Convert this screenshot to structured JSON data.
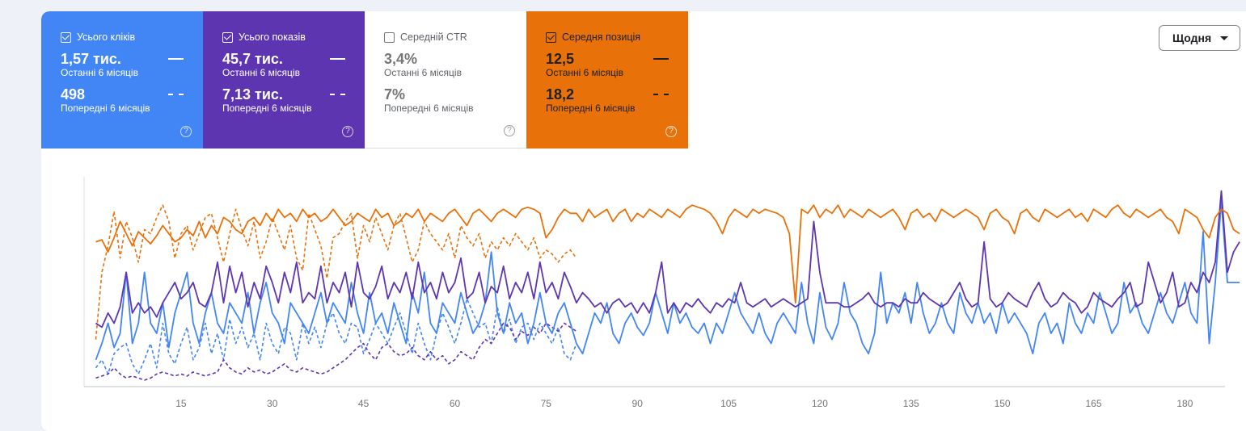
{
  "tiles": {
    "clicks": {
      "label": "Усього кліків",
      "checked": true,
      "current_value": "1,57 тис.",
      "current_period": "Останні 6 місяців",
      "previous_value": "498",
      "previous_period": "Попередні 6 місяців",
      "color": "#4285f4"
    },
    "impressions": {
      "label": "Усього показів",
      "checked": true,
      "current_value": "45,7 тис.",
      "current_period": "Останні 6 місяців",
      "previous_value": "7,13 тис.",
      "previous_period": "Попередні 6 місяців",
      "color": "#5e35b1"
    },
    "ctr": {
      "label": "Середній CTR",
      "checked": false,
      "current_value": "3,4%",
      "current_period": "Останні 6 місяців",
      "previous_value": "7%",
      "previous_period": "Попередні 6 місяців"
    },
    "position": {
      "label": "Середня позиція",
      "checked": true,
      "current_value": "12,5",
      "current_period": "Останні 6 місяців",
      "previous_value": "18,2",
      "previous_period": "Попередні 6 місяців",
      "color": "#e8710a"
    }
  },
  "help_glyph": "?",
  "granularity": {
    "selected": "Щодня"
  },
  "chart_data": {
    "type": "line",
    "x_ticks": [
      "15",
      "30",
      "45",
      "60",
      "75",
      "90",
      "105",
      "120",
      "135",
      "150",
      "165",
      "180"
    ],
    "x_range": [
      0,
      185
    ],
    "series": [
      {
        "name": "Усього кліків",
        "period": "Останні 6 місяців",
        "style": "solid",
        "color": "#4285f4",
        "values": [
          0.12,
          0.2,
          0.3,
          0.18,
          0.25,
          0.55,
          0.2,
          0.3,
          0.55,
          0.3,
          0.25,
          0.4,
          0.18,
          0.35,
          0.45,
          0.55,
          0.3,
          0.2,
          0.35,
          0.45,
          0.3,
          0.25,
          0.4,
          0.35,
          0.3,
          0.45,
          0.25,
          0.4,
          0.5,
          0.35,
          0.3,
          0.2,
          0.4,
          0.35,
          0.3,
          0.25,
          0.35,
          0.45,
          0.3,
          0.4,
          0.35,
          0.3,
          0.5,
          0.35,
          0.25,
          0.45,
          0.3,
          0.35,
          0.25,
          0.4,
          0.3,
          0.2,
          0.45,
          0.35,
          0.55,
          0.3,
          0.25,
          0.4,
          0.35,
          0.3,
          0.45,
          0.35,
          0.25,
          0.3,
          0.4,
          0.65,
          0.35,
          0.25,
          0.4,
          0.3,
          0.35,
          0.2,
          0.3,
          0.45,
          0.3,
          0.25,
          0.35,
          0.4,
          0.3,
          0.2,
          0.15,
          0.25,
          0.35,
          0.3,
          0.4,
          0.25,
          0.2,
          0.3,
          0.35,
          0.28,
          0.24,
          0.3,
          0.45,
          0.35,
          0.25,
          0.4,
          0.3,
          0.35,
          0.28,
          0.25,
          0.3,
          0.2,
          0.3,
          0.25,
          0.35,
          0.45,
          0.35,
          0.3,
          0.25,
          0.35,
          0.25,
          0.2,
          0.3,
          0.35,
          0.3,
          0.25,
          0.5,
          0.3,
          0.2,
          0.45,
          0.28,
          0.22,
          0.3,
          0.5,
          0.35,
          0.3,
          0.2,
          0.15,
          0.25,
          0.55,
          0.3,
          0.4,
          0.35,
          0.45,
          0.3,
          0.5,
          0.35,
          0.25,
          0.3,
          0.4,
          0.3,
          0.25,
          0.45,
          0.35,
          0.3,
          0.4,
          0.3,
          0.35,
          0.25,
          0.4,
          0.3,
          0.35,
          0.3,
          0.25,
          0.15,
          0.3,
          0.35,
          0.25,
          0.3,
          0.2,
          0.4,
          0.3,
          0.25,
          0.35,
          0.3,
          0.45,
          0.35,
          0.25,
          0.3,
          0.5,
          0.35,
          0.4,
          0.3,
          0.25,
          0.35,
          0.45,
          0.35,
          0.3,
          0.4,
          0.5,
          0.35,
          0.3,
          0.75,
          0.2,
          0.5,
          0.9,
          0.5,
          0.5,
          0.5
        ]
      },
      {
        "name": "Усього показів",
        "period": "Останні 6 місяців",
        "style": "solid",
        "color": "#5e35b1",
        "values": [
          0.3,
          0.28,
          0.35,
          0.3,
          0.38,
          0.55,
          0.35,
          0.4,
          0.35,
          0.38,
          0.33,
          0.4,
          0.45,
          0.5,
          0.42,
          0.45,
          0.5,
          0.4,
          0.38,
          0.45,
          0.6,
          0.4,
          0.58,
          0.45,
          0.55,
          0.38,
          0.5,
          0.42,
          0.58,
          0.5,
          0.4,
          0.55,
          0.45,
          0.6,
          0.4,
          0.45,
          0.42,
          0.58,
          0.4,
          0.5,
          0.45,
          0.55,
          0.38,
          0.6,
          0.45,
          0.42,
          0.48,
          0.58,
          0.42,
          0.5,
          0.45,
          0.55,
          0.42,
          0.6,
          0.45,
          0.5,
          0.42,
          0.55,
          0.45,
          0.5,
          0.62,
          0.42,
          0.45,
          0.55,
          0.4,
          0.48,
          0.45,
          0.58,
          0.42,
          0.5,
          0.45,
          0.55,
          0.42,
          0.6,
          0.45,
          0.5,
          0.42,
          0.55,
          0.48,
          0.4,
          0.45,
          0.42,
          0.38,
          0.4,
          0.35,
          0.4,
          0.42,
          0.38,
          0.4,
          0.35,
          0.4,
          0.35,
          0.45,
          0.6,
          0.35,
          0.4,
          0.35,
          0.4,
          0.38,
          0.42,
          0.38,
          0.35,
          0.4,
          0.38,
          0.42,
          0.4,
          0.5,
          0.4,
          0.38,
          0.4,
          0.42,
          0.38,
          0.4,
          0.42,
          0.4,
          0.38,
          0.4,
          0.42,
          0.8,
          0.55,
          0.4,
          0.4,
          0.4,
          0.38,
          0.38,
          0.4,
          0.42,
          0.45,
          0.4,
          0.38,
          0.4,
          0.4,
          0.38,
          0.42,
          0.4,
          0.4,
          0.45,
          0.42,
          0.4,
          0.38,
          0.4,
          0.45,
          0.5,
          0.42,
          0.38,
          0.4,
          0.7,
          0.42,
          0.38,
          0.4,
          0.45,
          0.42,
          0.4,
          0.38,
          0.45,
          0.5,
          0.42,
          0.38,
          0.4,
          0.45,
          0.42,
          0.4,
          0.35,
          0.38,
          0.45,
          0.42,
          0.4,
          0.38,
          0.42,
          0.45,
          0.5,
          0.38,
          0.4,
          0.6,
          0.5,
          0.4,
          0.45,
          0.55,
          0.38,
          0.4,
          0.5,
          0.45,
          0.55,
          0.5,
          0.6,
          0.95,
          0.55,
          0.65,
          0.7
        ]
      },
      {
        "name": "Середня позиція",
        "period": "Останні 6 місяців",
        "style": "solid",
        "color": "#e8710a",
        "values": [
          0.7,
          0.71,
          0.65,
          0.72,
          0.8,
          0.74,
          0.68,
          0.75,
          0.72,
          0.69,
          0.73,
          0.78,
          0.74,
          0.7,
          0.72,
          0.76,
          0.73,
          0.8,
          0.72,
          0.78,
          0.74,
          0.82,
          0.8,
          0.76,
          0.74,
          0.8,
          0.82,
          0.78,
          0.84,
          0.8,
          0.86,
          0.82,
          0.84,
          0.8,
          0.86,
          0.82,
          0.84,
          0.8,
          0.82,
          0.86,
          0.82,
          0.78,
          0.8,
          0.84,
          0.82,
          0.8,
          0.86,
          0.82,
          0.84,
          0.78,
          0.8,
          0.84,
          0.82,
          0.86,
          0.8,
          0.84,
          0.82,
          0.8,
          0.84,
          0.86,
          0.82,
          0.78,
          0.84,
          0.86,
          0.83,
          0.8,
          0.84,
          0.86,
          0.84,
          0.82,
          0.86,
          0.87,
          0.86,
          0.84,
          0.72,
          0.76,
          0.82,
          0.86,
          0.84,
          0.84,
          0.8,
          0.86,
          0.82,
          0.84,
          0.86,
          0.8,
          0.84,
          0.86,
          0.8,
          0.84,
          0.82,
          0.86,
          0.84,
          0.82,
          0.86,
          0.84,
          0.82,
          0.86,
          0.88,
          0.87,
          0.86,
          0.84,
          0.8,
          0.74,
          0.82,
          0.86,
          0.84,
          0.82,
          0.86,
          0.84,
          0.86,
          0.85,
          0.84,
          0.82,
          0.74,
          0.4,
          0.86,
          0.84,
          0.88,
          0.82,
          0.86,
          0.84,
          0.88,
          0.82,
          0.86,
          0.84,
          0.82,
          0.86,
          0.84,
          0.82,
          0.84,
          0.86,
          0.82,
          0.76,
          0.84,
          0.86,
          0.82,
          0.84,
          0.8,
          0.86,
          0.84,
          0.82,
          0.84,
          0.86,
          0.84,
          0.82,
          0.76,
          0.84,
          0.86,
          0.82,
          0.8,
          0.74,
          0.84,
          0.86,
          0.82,
          0.8,
          0.86,
          0.84,
          0.82,
          0.84,
          0.86,
          0.82,
          0.84,
          0.8,
          0.86,
          0.84,
          0.82,
          0.86,
          0.88,
          0.84,
          0.82,
          0.86,
          0.84,
          0.82,
          0.84,
          0.86,
          0.82,
          0.8,
          0.74,
          0.86,
          0.84,
          0.82,
          0.76,
          0.72,
          0.82,
          0.86,
          0.84,
          0.76,
          0.74
        ]
      },
      {
        "name": "Усього кліків",
        "period": "Попередні 6 місяців",
        "style": "dashed",
        "color": "#4285f4",
        "values": [
          0.08,
          0.12,
          0.05,
          0.15,
          0.18,
          0.2,
          0.1,
          0.05,
          0.12,
          0.2,
          0.08,
          0.3,
          0.15,
          0.1,
          0.2,
          0.28,
          0.12,
          0.18,
          0.3,
          0.15,
          0.25,
          0.12,
          0.32,
          0.2,
          0.28,
          0.18,
          0.25,
          0.12,
          0.3,
          0.2,
          0.15,
          0.28,
          0.25,
          0.12,
          0.3,
          0.2,
          0.28,
          0.18,
          0.3,
          0.35,
          0.25,
          0.2,
          0.3,
          0.28,
          0.15,
          0.22,
          0.3,
          0.25,
          0.2,
          0.28,
          0.35,
          0.25,
          0.15,
          0.3,
          0.2,
          0.12,
          0.25,
          0.35,
          0.28,
          0.2,
          0.3,
          0.42,
          0.35,
          0.28,
          0.3,
          0.2,
          0.38,
          0.25,
          0.32,
          0.2,
          0.28,
          0.3,
          0.22,
          0.3,
          0.25,
          0.2,
          0.28,
          0.15,
          0.12,
          0.2
        ]
      },
      {
        "name": "Усього показів",
        "period": "Попередні 6 місяців",
        "style": "dashed",
        "color": "#5e35b1",
        "values": [
          0.03,
          0.04,
          0.05,
          0.08,
          0.05,
          0.03,
          0.04,
          0.03,
          0.02,
          0.03,
          0.05,
          0.06,
          0.05,
          0.04,
          0.05,
          0.04,
          0.06,
          0.05,
          0.04,
          0.05,
          0.06,
          0.12,
          0.08,
          0.06,
          0.05,
          0.08,
          0.06,
          0.07,
          0.05,
          0.06,
          0.08,
          0.1,
          0.07,
          0.06,
          0.08,
          0.07,
          0.06,
          0.05,
          0.06,
          0.08,
          0.1,
          0.12,
          0.15,
          0.18,
          0.2,
          0.15,
          0.12,
          0.18,
          0.2,
          0.16,
          0.14,
          0.15,
          0.18,
          0.14,
          0.12,
          0.16,
          0.12,
          0.14,
          0.1,
          0.12,
          0.16,
          0.14,
          0.12,
          0.18,
          0.22,
          0.2,
          0.25,
          0.3,
          0.28,
          0.22,
          0.26,
          0.24,
          0.28,
          0.25,
          0.3,
          0.28,
          0.26,
          0.3,
          0.28,
          0.26
        ]
      },
      {
        "name": "Середня позиція",
        "period": "Попередні 6 місяців",
        "style": "dashed",
        "color": "#e8710a",
        "values": [
          0.22,
          0.55,
          0.68,
          0.85,
          0.62,
          0.8,
          0.72,
          0.6,
          0.76,
          0.74,
          0.82,
          0.88,
          0.8,
          0.62,
          0.74,
          0.78,
          0.66,
          0.74,
          0.82,
          0.84,
          0.72,
          0.6,
          0.74,
          0.86,
          0.76,
          0.68,
          0.8,
          0.62,
          0.7,
          0.82,
          0.74,
          0.66,
          0.78,
          0.62,
          0.56,
          0.84,
          0.76,
          0.68,
          0.52,
          0.72,
          0.74,
          0.8,
          0.84,
          0.62,
          0.78,
          0.7,
          0.82,
          0.74,
          0.66,
          0.78,
          0.84,
          0.72,
          0.6,
          0.66,
          0.8,
          0.74,
          0.7,
          0.66,
          0.74,
          0.62,
          0.78,
          0.72,
          0.68,
          0.74,
          0.62,
          0.7,
          0.66,
          0.72,
          0.68,
          0.74,
          0.7,
          0.66,
          0.72,
          0.62,
          0.66,
          0.64,
          0.6,
          0.64,
          0.66,
          0.62
        ]
      }
    ]
  }
}
